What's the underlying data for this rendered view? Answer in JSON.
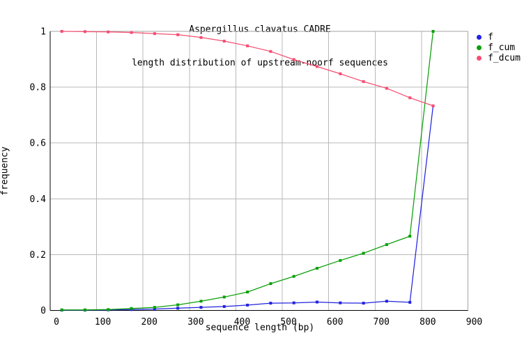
{
  "title": {
    "line1": "Aspergillus clavatus CADRE",
    "line2": "length distribution of upstream-noorf sequences"
  },
  "chart_data": {
    "type": "line",
    "title": "Aspergillus clavatus CADRE - length distribution of upstream-noorf sequences",
    "xlabel": "sequence length (bp)",
    "ylabel": "frequency",
    "xlim": [
      0,
      900
    ],
    "ylim": [
      0,
      1
    ],
    "grid": true,
    "legend_position": "top-right-outside",
    "x_ticks": [
      0,
      100,
      200,
      300,
      400,
      500,
      600,
      700,
      800,
      900
    ],
    "y_ticks": [
      {
        "value": 0,
        "label": "0"
      },
      {
        "value": 0.2,
        "label": "0.2"
      },
      {
        "value": 0.4,
        "label": "0.4"
      },
      {
        "value": 0.6,
        "label": "0.6"
      },
      {
        "value": 0.8,
        "label": "0.8"
      },
      {
        "value": 1,
        "label": "1"
      }
    ],
    "x": [
      25,
      75,
      125,
      175,
      225,
      275,
      325,
      375,
      425,
      475,
      525,
      575,
      625,
      675,
      725,
      775,
      825
    ],
    "series": [
      {
        "name": "f",
        "color": "#2222e0",
        "values": [
          0.001,
          0.001,
          0.002,
          0.003,
          0.005,
          0.008,
          0.011,
          0.014,
          0.019,
          0.026,
          0.027,
          0.03,
          0.027,
          0.026,
          0.033,
          0.029,
          0.733
        ]
      },
      {
        "name": "f_cum",
        "color": "#0aa00a",
        "values": [
          0.002,
          0.002,
          0.003,
          0.007,
          0.011,
          0.02,
          0.033,
          0.048,
          0.066,
          0.096,
          0.122,
          0.151,
          0.179,
          0.205,
          0.236,
          0.266,
          1.0
        ]
      },
      {
        "name": "f_dcum",
        "color": "#f74d72",
        "values": [
          1.0,
          0.999,
          0.998,
          0.996,
          0.992,
          0.988,
          0.978,
          0.965,
          0.948,
          0.928,
          0.899,
          0.874,
          0.848,
          0.82,
          0.796,
          0.762,
          0.733
        ]
      }
    ]
  },
  "colors": {
    "background": "#ffffff",
    "grid": "#b9b9b9",
    "axis": "#000000",
    "border": "#a3a3a3",
    "text": "#000000"
  }
}
